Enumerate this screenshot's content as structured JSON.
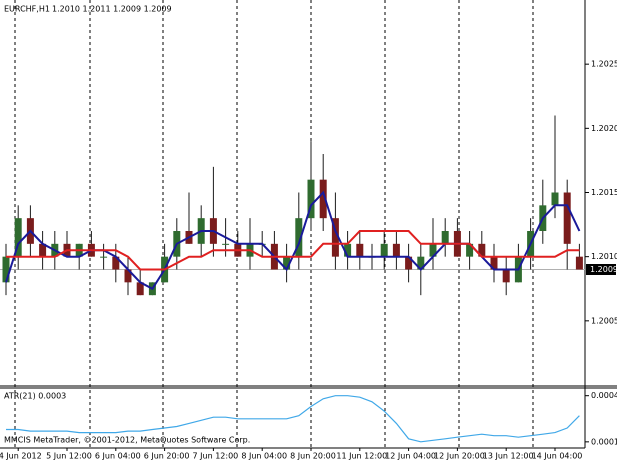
{
  "chart_data": [
    {
      "type": "candlestick",
      "title": "EURCHF,H1",
      "subtitle": "1.2010 1.2011 1.2009 1.2009",
      "categories": [
        null,
        "4 Jun 2012",
        null,
        null,
        null,
        "5 Jun 12:00",
        null,
        null,
        null,
        "6 Jun 04:00",
        null,
        null,
        null,
        "6 Jun 20:00",
        null,
        null,
        null,
        "7 Jun 12:00",
        null,
        null,
        null,
        "8 Jun 04:00",
        null,
        null,
        null,
        "8 Jun 20:00",
        null,
        null,
        null,
        "11 Jun 12:00",
        null,
        null,
        null,
        "12 Jun 04:00",
        null,
        null,
        null,
        "12 Jun 20:00",
        null,
        null,
        null,
        "13 Jun 12:00",
        null,
        null,
        null,
        "14 Jun 04:00",
        null,
        null
      ],
      "open": [
        1.2008,
        1.201,
        1.2013,
        1.2011,
        1.201,
        1.2011,
        1.201,
        1.2011,
        1.201,
        1.201,
        1.2009,
        1.2008,
        1.2007,
        1.2008,
        1.201,
        1.2012,
        1.2011,
        1.2013,
        1.2011,
        1.2011,
        1.201,
        1.2011,
        1.2011,
        1.2009,
        1.201,
        1.2013,
        1.2016,
        1.2013,
        1.201,
        1.2011,
        1.201,
        1.201,
        1.2011,
        1.201,
        1.2009,
        1.201,
        1.2011,
        1.2012,
        1.201,
        1.2011,
        1.201,
        1.2009,
        1.2008,
        1.201,
        1.2012,
        1.2014,
        1.2015,
        1.201
      ],
      "high": [
        1.2011,
        1.2014,
        1.2014,
        1.2012,
        1.2012,
        1.2012,
        1.2011,
        1.2012,
        1.2011,
        1.2011,
        1.201,
        1.2009,
        1.2008,
        1.2011,
        1.2013,
        1.2015,
        1.2014,
        1.2017,
        1.2013,
        1.2012,
        1.2013,
        1.2012,
        1.2012,
        1.2011,
        1.2015,
        1.2019,
        1.2018,
        1.2015,
        1.2012,
        1.2012,
        1.2011,
        1.2012,
        1.2012,
        1.2011,
        1.2011,
        1.2013,
        1.2013,
        1.2013,
        1.2012,
        1.2012,
        1.2011,
        1.201,
        1.2011,
        1.2013,
        1.2016,
        1.2021,
        1.2016,
        1.2011
      ],
      "low": [
        1.2007,
        1.2009,
        1.201,
        1.2009,
        1.2009,
        1.201,
        1.2009,
        1.201,
        1.2009,
        1.2008,
        1.2007,
        1.2007,
        1.2007,
        1.2008,
        1.2009,
        1.2011,
        1.201,
        1.201,
        1.201,
        1.201,
        1.2009,
        1.201,
        1.2009,
        1.2008,
        1.2009,
        1.2012,
        1.2012,
        1.2009,
        1.2009,
        1.2009,
        1.2009,
        1.2009,
        1.2009,
        1.2008,
        1.2007,
        1.2009,
        1.201,
        1.201,
        1.2009,
        1.201,
        1.2008,
        1.2007,
        1.2008,
        1.2009,
        1.2011,
        1.2013,
        1.2009,
        1.2009
      ],
      "close": [
        1.201,
        1.2013,
        1.2011,
        1.201,
        1.2011,
        1.201,
        1.2011,
        1.201,
        1.201,
        1.2009,
        1.2008,
        1.2007,
        1.2008,
        1.201,
        1.2012,
        1.2011,
        1.2013,
        1.2011,
        1.2011,
        1.201,
        1.2011,
        1.2011,
        1.2009,
        1.201,
        1.2013,
        1.2016,
        1.2013,
        1.201,
        1.2011,
        1.201,
        1.201,
        1.2011,
        1.201,
        1.2009,
        1.201,
        1.2011,
        1.2012,
        1.201,
        1.2011,
        1.201,
        1.2009,
        1.2008,
        1.201,
        1.2012,
        1.2014,
        1.2015,
        1.2011,
        1.2009
      ],
      "up_color": "#2f6b2f",
      "down_color": "#7a1c1c",
      "wick_color": "#1b1b1b",
      "overlays": [
        {
          "color": "#1a1a9a",
          "values": [
            1.2008,
            1.2011,
            1.2012,
            1.2011,
            1.20105,
            1.201,
            1.201,
            1.20105,
            1.20105,
            1.201,
            1.2009,
            1.2008,
            1.20075,
            1.2009,
            1.2011,
            1.20115,
            1.2012,
            1.2012,
            1.20115,
            1.2011,
            1.2011,
            1.2011,
            1.201,
            1.2009,
            1.2011,
            1.2014,
            1.2015,
            1.2012,
            1.201,
            1.201,
            1.201,
            1.201,
            1.201,
            1.201,
            1.2009,
            1.201,
            1.2011,
            1.2011,
            1.2011,
            1.201,
            1.2009,
            1.2009,
            1.2009,
            1.2011,
            1.2013,
            1.2014,
            1.2014,
            1.2012
          ]
        },
        {
          "color": "#e02020",
          "values": [
            1.201,
            1.201,
            1.201,
            1.201,
            1.201,
            1.20105,
            1.20105,
            1.20105,
            1.20105,
            1.20105,
            1.201,
            1.2009,
            1.2009,
            1.2009,
            1.20095,
            1.201,
            1.201,
            1.20105,
            1.20105,
            1.20105,
            1.20105,
            1.201,
            1.201,
            1.201,
            1.201,
            1.201,
            1.2011,
            1.2011,
            1.2011,
            1.2012,
            1.2012,
            1.2012,
            1.2012,
            1.2012,
            1.2011,
            1.2011,
            1.2011,
            1.2011,
            1.2011,
            1.201,
            1.201,
            1.201,
            1.201,
            1.201,
            1.201,
            1.201,
            1.20105,
            1.20105
          ]
        }
      ],
      "current_price": 1.2009,
      "ylim": [
        1.2,
        1.203
      ],
      "yticks": [
        1.2005,
        {
          "value": 1.201,
          "label": "1.2010"
        },
        1.2015,
        {
          "value": 1.202,
          "label": "1.2020"
        },
        1.2025
      ]
    },
    {
      "type": "line",
      "title": "ATR(21) 0.0003",
      "annotation": "MMCIS MetaTrader, ©2001-2012, MetaQuotes Software Corp.",
      "color": "#40a8e8",
      "values": [
        0.00018,
        0.00018,
        0.00017,
        0.00017,
        0.00017,
        0.00017,
        0.00016,
        0.00016,
        0.00016,
        0.00016,
        0.00017,
        0.00017,
        0.00018,
        0.00019,
        0.0002,
        0.00022,
        0.00024,
        0.00026,
        0.00026,
        0.00025,
        0.00025,
        0.00025,
        0.00025,
        0.00025,
        0.00027,
        0.00033,
        0.00038,
        0.0004,
        0.0004,
        0.00039,
        0.00036,
        0.0003,
        0.00022,
        0.00012,
        0.0001,
        0.00011,
        0.00012,
        0.00013,
        0.00014,
        0.00015,
        0.00014,
        0.00014,
        0.00013,
        0.00014,
        0.00015,
        0.00016,
        0.00019,
        0.00027
      ],
      "ylim": [
        6e-05,
        0.00045
      ],
      "yticks": [
        0.0001,
        0.0004
      ]
    }
  ]
}
